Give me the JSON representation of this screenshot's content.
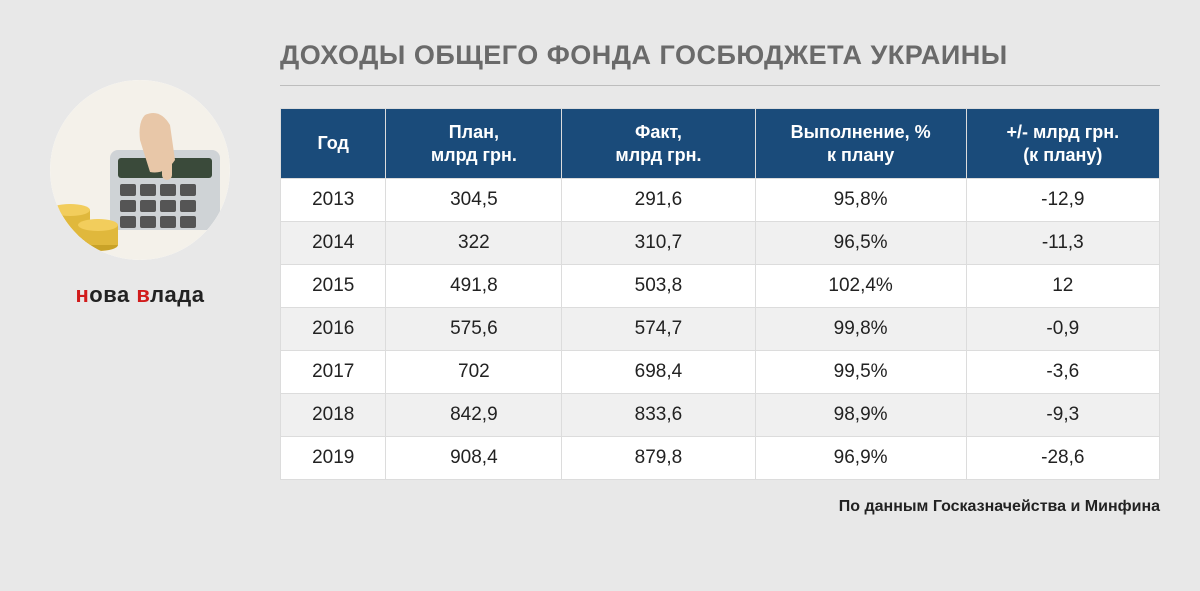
{
  "brand": {
    "part1_red": "н",
    "part1_dark": "ова ",
    "part2_red": "в",
    "part2_dark": "лада"
  },
  "title": "ДОХОДЫ ОБЩЕГО ФОНДА ГОСБЮДЖЕТА УКРАИНЫ",
  "source": "По данным Госказначейства и Минфина",
  "table": {
    "columns": [
      "Год",
      "План,\nмлрд грн.",
      "Факт,\nмлрд грн.",
      "Выполнение, %\nк плану",
      "+/- млрд грн.\n(к плану)"
    ],
    "col_widths": [
      "12%",
      "20%",
      "22%",
      "24%",
      "22%"
    ],
    "rows": [
      [
        "2013",
        "304,5",
        "291,6",
        "95,8%",
        "-12,9"
      ],
      [
        "2014",
        "322",
        "310,7",
        "96,5%",
        "-11,3"
      ],
      [
        "2015",
        "491,8",
        "503,8",
        "102,4%",
        "12"
      ],
      [
        "2016",
        "575,6",
        "574,7",
        "99,8%",
        "-0,9"
      ],
      [
        "2017",
        "702",
        "698,4",
        "99,5%",
        "-3,6"
      ],
      [
        "2018",
        "842,9",
        "833,6",
        "98,9%",
        "-9,3"
      ],
      [
        "2019",
        "908,4",
        "879,8",
        "96,9%",
        "-28,6"
      ]
    ],
    "header_bg": "#1a4b7a",
    "header_fg": "#ffffff",
    "row_alt_bg": "#f0f0f0",
    "border_color": "#dcdcdc"
  },
  "colors": {
    "page_bg": "#e8e8e8",
    "title_color": "#6a6a6a",
    "brand_red": "#d11b1b",
    "brand_dark": "#222222"
  }
}
